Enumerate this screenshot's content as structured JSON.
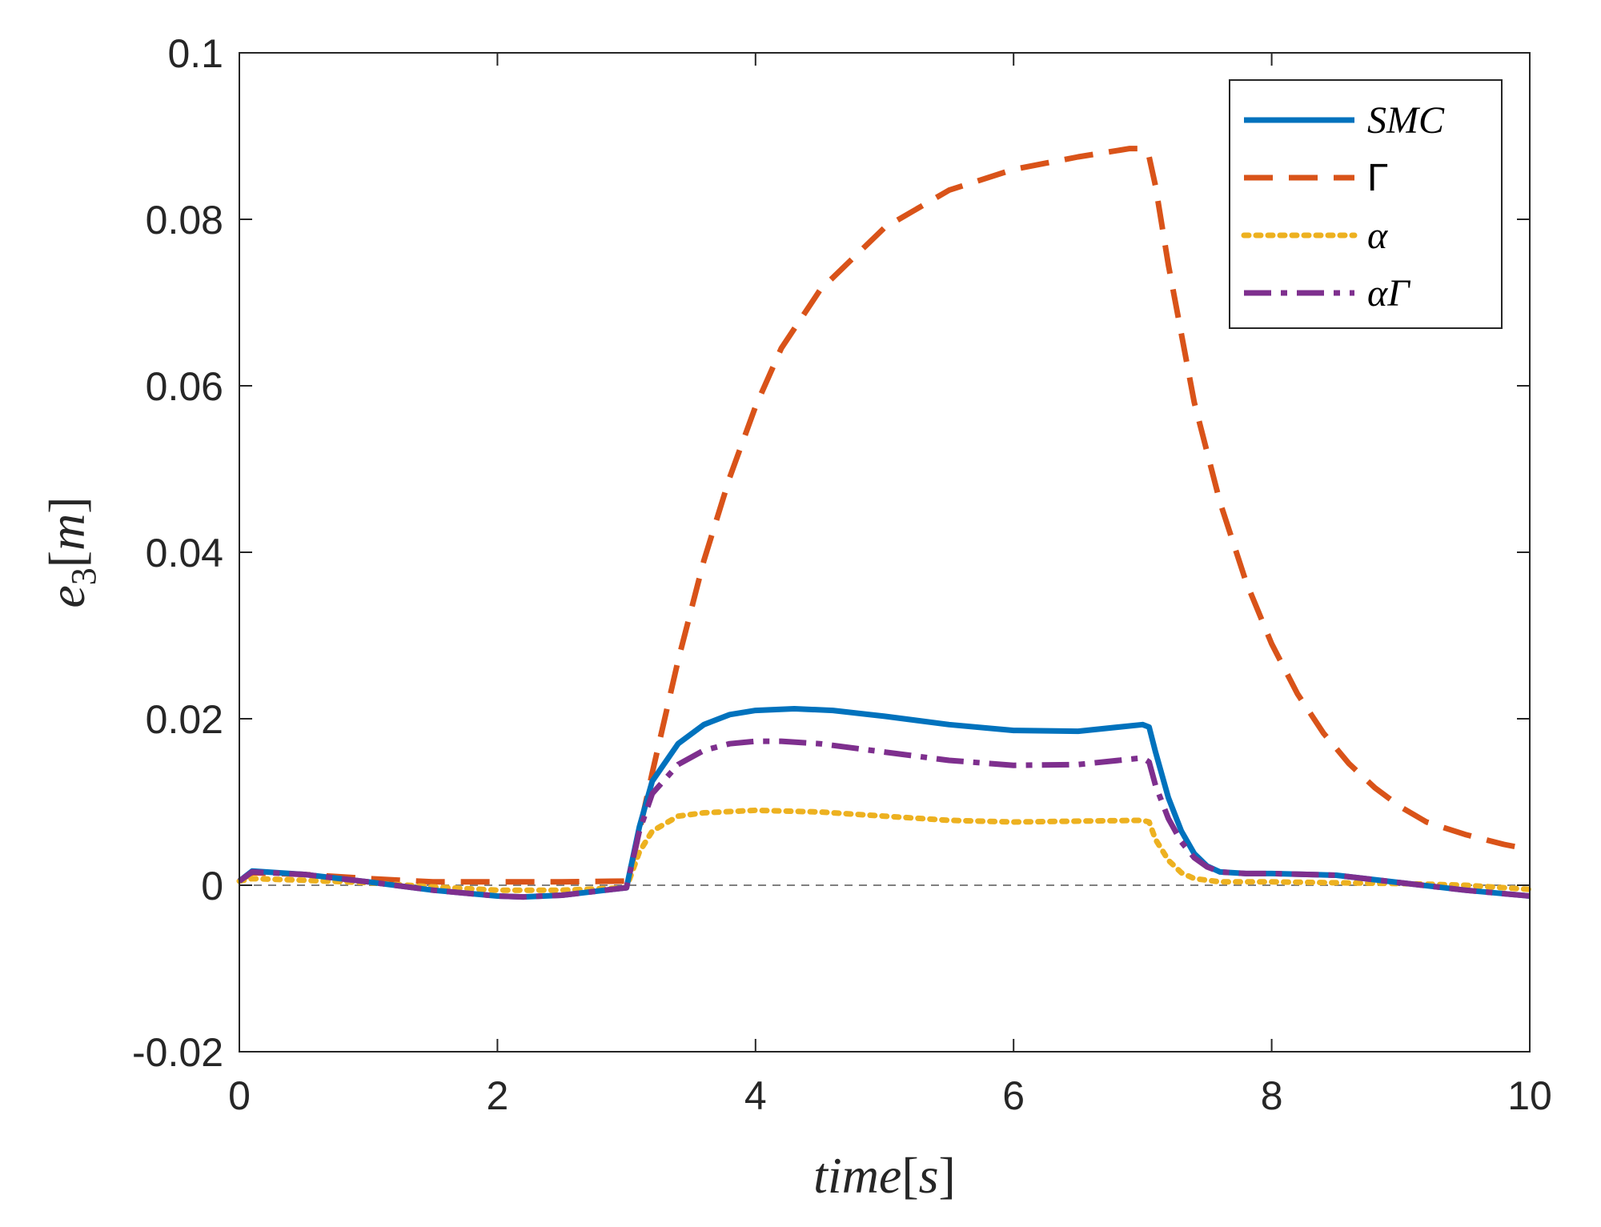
{
  "chart_data": {
    "type": "line",
    "title": "",
    "xlabel": "time[s]",
    "ylabel": "e3[m]",
    "xlabel_parts": {
      "base": "time",
      "open": "[",
      "unit": "s",
      "close": "]"
    },
    "ylabel_parts": {
      "base": "e",
      "sub": "3",
      "open": "[",
      "unit": "m",
      "close": "]"
    },
    "xlim": [
      0,
      10
    ],
    "ylim": [
      -0.02,
      0.1
    ],
    "xticks": [
      0,
      2,
      4,
      6,
      8,
      10
    ],
    "yticks": [
      -0.02,
      0,
      0.02,
      0.04,
      0.06,
      0.08,
      0.1
    ],
    "xtick_labels": [
      "0",
      "2",
      "4",
      "6",
      "8",
      "10"
    ],
    "ytick_labels": [
      "-0.02",
      "0",
      "0.02",
      "0.04",
      "0.06",
      "0.08",
      "0.1"
    ],
    "grid": false,
    "reference_line": {
      "y": 0,
      "color": "#808080",
      "style": "dashed"
    },
    "legend_position": "top-right",
    "series": [
      {
        "name": "SMC",
        "color": "#0072BD",
        "style": "solid",
        "x": [
          0,
          0.1,
          0.5,
          1.0,
          1.5,
          2.0,
          2.2,
          2.5,
          3.0,
          3.1,
          3.2,
          3.4,
          3.6,
          3.8,
          4.0,
          4.3,
          4.6,
          5.0,
          5.5,
          6.0,
          6.5,
          7.0,
          7.05,
          7.1,
          7.2,
          7.3,
          7.4,
          7.5,
          7.6,
          7.8,
          8.0,
          8.5,
          9.0,
          9.5,
          10.0
        ],
        "y": [
          0.0005,
          0.0017,
          0.0013,
          0.0004,
          -0.0006,
          -0.0013,
          -0.0014,
          -0.0012,
          -0.0003,
          0.007,
          0.0125,
          0.017,
          0.0193,
          0.0205,
          0.021,
          0.0212,
          0.021,
          0.0203,
          0.0193,
          0.0186,
          0.0185,
          0.0193,
          0.019,
          0.016,
          0.0105,
          0.0065,
          0.0038,
          0.0023,
          0.0016,
          0.0014,
          0.0014,
          0.0012,
          0.0003,
          -0.0006,
          -0.0013
        ]
      },
      {
        "name": "Γ",
        "color": "#D95319",
        "style": "dashed",
        "x": [
          0,
          0.1,
          0.5,
          1.0,
          1.5,
          2.0,
          2.5,
          3.0,
          3.05,
          3.2,
          3.4,
          3.6,
          3.8,
          4.0,
          4.2,
          4.5,
          5.0,
          5.5,
          6.0,
          6.5,
          6.9,
          7.0,
          7.05,
          7.1,
          7.2,
          7.4,
          7.6,
          7.8,
          8.0,
          8.2,
          8.4,
          8.6,
          8.8,
          9.0,
          9.2,
          9.5,
          9.8,
          10.0
        ],
        "y": [
          0.0005,
          0.0015,
          0.0013,
          0.0008,
          0.0004,
          0.0004,
          0.0004,
          0.0005,
          0.003,
          0.0135,
          0.027,
          0.039,
          0.049,
          0.0575,
          0.0645,
          0.0715,
          0.079,
          0.0835,
          0.086,
          0.0875,
          0.0885,
          0.0885,
          0.0875,
          0.084,
          0.0745,
          0.058,
          0.046,
          0.0365,
          0.029,
          0.023,
          0.0183,
          0.0146,
          0.0117,
          0.0094,
          0.0076,
          0.0061,
          0.0049,
          0.0043
        ]
      },
      {
        "name": "α",
        "color": "#EDB120",
        "style": "dotted",
        "x": [
          0,
          0.1,
          0.5,
          1.0,
          1.5,
          2.0,
          2.5,
          3.0,
          3.1,
          3.2,
          3.4,
          3.6,
          4.0,
          4.5,
          5.0,
          5.5,
          6.0,
          6.5,
          7.0,
          7.05,
          7.1,
          7.2,
          7.3,
          7.4,
          7.6,
          8.0,
          8.5,
          9.0,
          9.5,
          10.0
        ],
        "y": [
          0.0005,
          0.0008,
          0.0006,
          0.0003,
          -0.0002,
          -0.0006,
          -0.0006,
          -0.0003,
          0.004,
          0.0065,
          0.0083,
          0.0087,
          0.009,
          0.0088,
          0.0083,
          0.0078,
          0.0076,
          0.0077,
          0.0078,
          0.0076,
          0.0055,
          0.003,
          0.0015,
          0.0008,
          0.0004,
          0.0004,
          0.0003,
          0.0002,
          0.0,
          -0.0005
        ]
      },
      {
        "name": "αΓ",
        "color": "#7E2F8E",
        "style": "dashdot",
        "x": [
          0,
          0.1,
          0.5,
          1.0,
          1.5,
          2.0,
          2.2,
          2.5,
          3.0,
          3.1,
          3.2,
          3.4,
          3.6,
          3.8,
          4.0,
          4.2,
          4.5,
          5.0,
          5.5,
          6.0,
          6.5,
          7.0,
          7.05,
          7.1,
          7.2,
          7.3,
          7.4,
          7.5,
          7.6,
          7.8,
          8.0,
          8.5,
          9.0,
          9.5,
          10.0
        ],
        "y": [
          0.0005,
          0.0016,
          0.0013,
          0.0004,
          -0.0006,
          -0.0013,
          -0.0014,
          -0.0012,
          -0.0003,
          0.0065,
          0.011,
          0.0145,
          0.0162,
          0.017,
          0.0173,
          0.0173,
          0.017,
          0.016,
          0.015,
          0.0144,
          0.0145,
          0.0153,
          0.0148,
          0.012,
          0.008,
          0.0052,
          0.0033,
          0.0022,
          0.0016,
          0.0014,
          0.0014,
          0.0012,
          0.0003,
          -0.0006,
          -0.0013
        ]
      }
    ]
  }
}
